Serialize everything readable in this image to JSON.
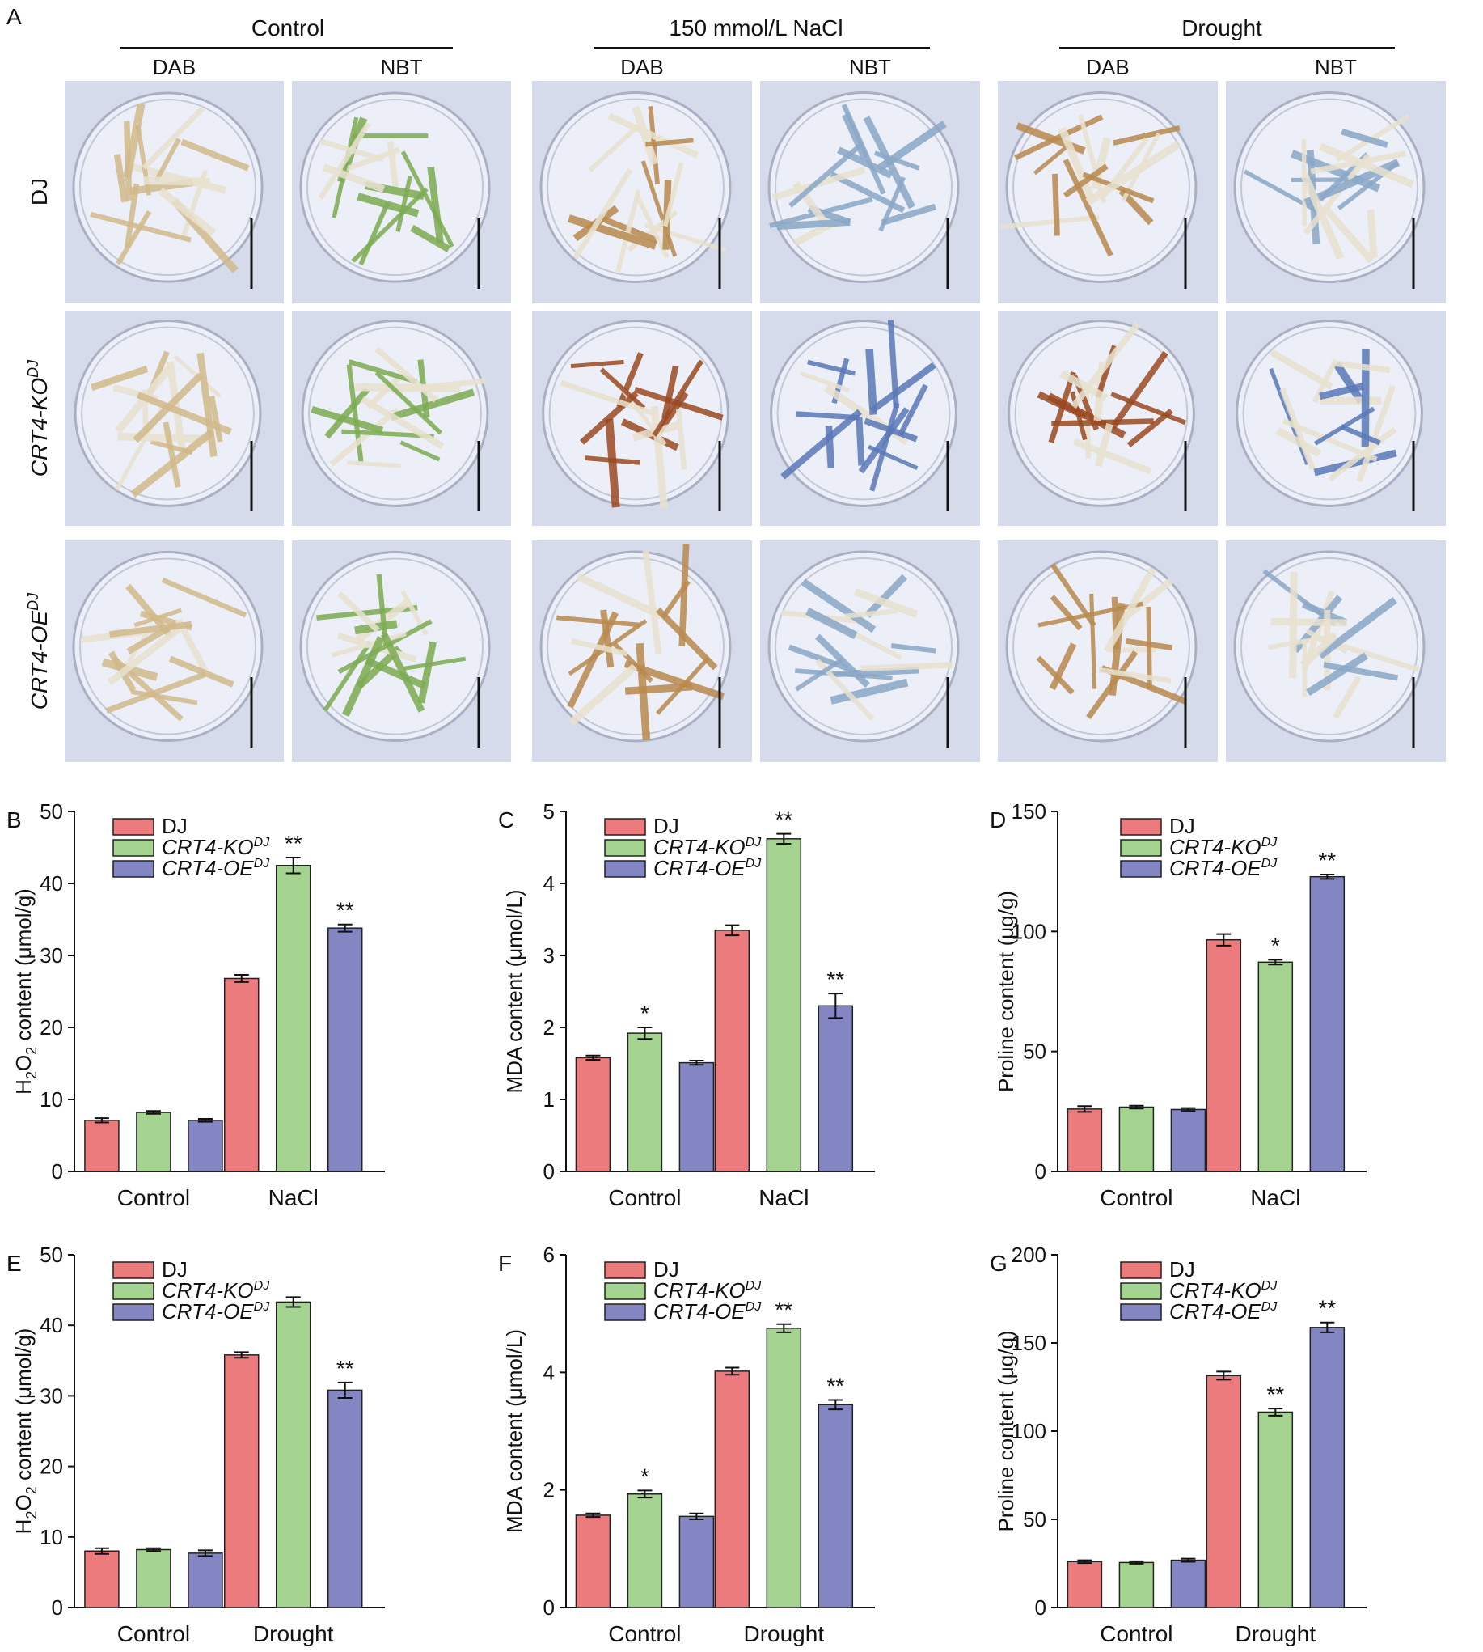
{
  "colors": {
    "DJ": "#ec7b7e",
    "KO": "#a5d490",
    "OE": "#8386c2",
    "photo_bg": "#d6dbeb",
    "leaf_green": "#7dac52",
    "dab_brown": "#b88a52",
    "nbt_blue": "#5a78b8"
  },
  "panel_a": {
    "letter": "A",
    "groups": [
      "Control",
      "150 mmol/L NaCl",
      "Drought"
    ],
    "stains": [
      "DAB",
      "NBT"
    ],
    "rows": [
      {
        "label": "DJ",
        "sup": ""
      },
      {
        "label": "CRT4-KO",
        "sup": "DJ"
      },
      {
        "label": "CRT4-OE",
        "sup": "DJ"
      }
    ]
  },
  "legend": {
    "DJ": "DJ",
    "KO": "CRT4-KO",
    "OE": "CRT4-OE",
    "sup": "DJ"
  },
  "chart_data": [
    {
      "id": "B",
      "type": "bar",
      "categories": [
        "Control",
        "NaCl"
      ],
      "ylabel": "H2O2 content (μmol/g)",
      "ylabel_sub": "2",
      "ylim": [
        0,
        50
      ],
      "yticks": [
        0,
        10,
        20,
        30,
        40,
        50
      ],
      "series": [
        {
          "name": "DJ",
          "values": [
            7.1,
            26.8
          ],
          "errors": [
            0.3,
            0.5
          ],
          "sig": [
            "",
            ""
          ]
        },
        {
          "name": "CRT4-KO",
          "values": [
            8.2,
            42.5
          ],
          "errors": [
            0.2,
            1.1
          ],
          "sig": [
            "",
            "**"
          ]
        },
        {
          "name": "CRT4-OE",
          "values": [
            7.1,
            33.8
          ],
          "errors": [
            0.2,
            0.5
          ],
          "sig": [
            "",
            "**"
          ]
        }
      ]
    },
    {
      "id": "C",
      "type": "bar",
      "categories": [
        "Control",
        "NaCl"
      ],
      "ylabel": "MDA content (μmol/L)",
      "ylim": [
        0,
        5
      ],
      "yticks": [
        0,
        1,
        2,
        3,
        4,
        5
      ],
      "series": [
        {
          "name": "DJ",
          "values": [
            1.58,
            3.35
          ],
          "errors": [
            0.03,
            0.07
          ],
          "sig": [
            "",
            ""
          ]
        },
        {
          "name": "CRT4-KO",
          "values": [
            1.92,
            4.62
          ],
          "errors": [
            0.08,
            0.07
          ],
          "sig": [
            "*",
            "**"
          ]
        },
        {
          "name": "CRT4-OE",
          "values": [
            1.51,
            2.3
          ],
          "errors": [
            0.03,
            0.17
          ],
          "sig": [
            "",
            "**"
          ]
        }
      ]
    },
    {
      "id": "D",
      "type": "bar",
      "categories": [
        "Control",
        "NaCl"
      ],
      "ylabel": "Proline content (μg/g)",
      "ylim": [
        0,
        150
      ],
      "yticks": [
        0,
        50,
        100,
        150
      ],
      "series": [
        {
          "name": "DJ",
          "values": [
            26,
            96.5
          ],
          "errors": [
            1.2,
            2.4
          ],
          "sig": [
            "",
            ""
          ]
        },
        {
          "name": "CRT4-KO",
          "values": [
            26.8,
            87.2
          ],
          "errors": [
            0.6,
            1.0
          ],
          "sig": [
            "",
            "*"
          ]
        },
        {
          "name": "CRT4-OE",
          "values": [
            25.8,
            122.8
          ],
          "errors": [
            0.6,
            0.9
          ],
          "sig": [
            "",
            "**"
          ]
        }
      ]
    },
    {
      "id": "E",
      "type": "bar",
      "categories": [
        "Control",
        "Drought"
      ],
      "ylabel": "H2O2 content (μmol/g)",
      "ylabel_sub": "2",
      "ylim": [
        0,
        50
      ],
      "yticks": [
        0,
        10,
        20,
        30,
        40,
        50
      ],
      "series": [
        {
          "name": "DJ",
          "values": [
            8.0,
            35.8
          ],
          "errors": [
            0.4,
            0.4
          ],
          "sig": [
            "",
            ""
          ]
        },
        {
          "name": "CRT4-KO",
          "values": [
            8.2,
            43.3
          ],
          "errors": [
            0.2,
            0.7
          ],
          "sig": [
            "",
            ""
          ]
        },
        {
          "name": "CRT4-OE",
          "values": [
            7.7,
            30.8
          ],
          "errors": [
            0.4,
            1.1
          ],
          "sig": [
            "",
            "**"
          ]
        }
      ]
    },
    {
      "id": "F",
      "type": "bar",
      "categories": [
        "Control",
        "Drought"
      ],
      "ylabel": "MDA content (μmol/L)",
      "ylim": [
        0,
        6
      ],
      "yticks": [
        0,
        2,
        4,
        6
      ],
      "series": [
        {
          "name": "DJ",
          "values": [
            1.57,
            4.02
          ],
          "errors": [
            0.03,
            0.06
          ],
          "sig": [
            "",
            ""
          ]
        },
        {
          "name": "CRT4-KO",
          "values": [
            1.93,
            4.75
          ],
          "errors": [
            0.06,
            0.07
          ],
          "sig": [
            "*",
            "**"
          ]
        },
        {
          "name": "CRT4-OE",
          "values": [
            1.55,
            3.45
          ],
          "errors": [
            0.05,
            0.08
          ],
          "sig": [
            "",
            "**"
          ]
        }
      ]
    },
    {
      "id": "G",
      "type": "bar",
      "categories": [
        "Control",
        "Drought"
      ],
      "ylabel": "Proline content (μg/g)",
      "ylim": [
        0,
        200
      ],
      "yticks": [
        0,
        50,
        100,
        150,
        200
      ],
      "series": [
        {
          "name": "DJ",
          "values": [
            26,
            131.5
          ],
          "errors": [
            0.8,
            2.3
          ],
          "sig": [
            "",
            ""
          ]
        },
        {
          "name": "CRT4-KO",
          "values": [
            25.5,
            110.8
          ],
          "errors": [
            0.7,
            2.0
          ],
          "sig": [
            "",
            "**"
          ]
        },
        {
          "name": "CRT4-OE",
          "values": [
            26.8,
            158.8
          ],
          "errors": [
            0.9,
            2.8
          ],
          "sig": [
            "",
            "**"
          ]
        }
      ]
    }
  ]
}
